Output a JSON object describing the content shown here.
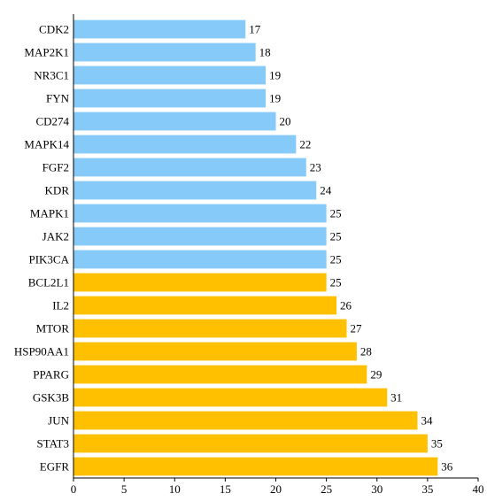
{
  "chart_data": {
    "type": "bar",
    "orientation": "horizontal",
    "categories": [
      "CDK2",
      "MAP2K1",
      "NR3C1",
      "FYN",
      "CD274",
      "MAPK14",
      "FGF2",
      "KDR",
      "MAPK1",
      "JAK2",
      "PIK3CA",
      "BCL2L1",
      "IL2",
      "MTOR",
      "HSP90AA1",
      "PPARG",
      "GSK3B",
      "JUN",
      "STAT3",
      "EGFR"
    ],
    "values": [
      17,
      18,
      19,
      19,
      20,
      22,
      23,
      24,
      25,
      25,
      25,
      25,
      26,
      27,
      28,
      29,
      31,
      34,
      35,
      36
    ],
    "colors": [
      "#85CAF9",
      "#85CAF9",
      "#85CAF9",
      "#85CAF9",
      "#85CAF9",
      "#85CAF9",
      "#85CAF9",
      "#85CAF9",
      "#85CAF9",
      "#85CAF9",
      "#85CAF9",
      "#FFC000",
      "#FFC000",
      "#FFC000",
      "#FFC000",
      "#FFC000",
      "#FFC000",
      "#FFC000",
      "#FFC000",
      "#FFC000"
    ],
    "data_labels": [
      "17",
      "18",
      "19",
      "19",
      "20",
      "22",
      "23",
      "24",
      "25",
      "25",
      "25",
      "25",
      "26",
      "27",
      "28",
      "29",
      "31",
      "34",
      "35",
      "36"
    ],
    "x_ticks": [
      0,
      5,
      10,
      15,
      20,
      25,
      30,
      35,
      40
    ],
    "x_tick_labels": [
      "0",
      "5",
      "10",
      "15",
      "20",
      "25",
      "30",
      "35",
      "40"
    ],
    "xlim": [
      0,
      40
    ],
    "title": "",
    "xlabel": "",
    "ylabel": "",
    "grid": false,
    "legend": false
  }
}
